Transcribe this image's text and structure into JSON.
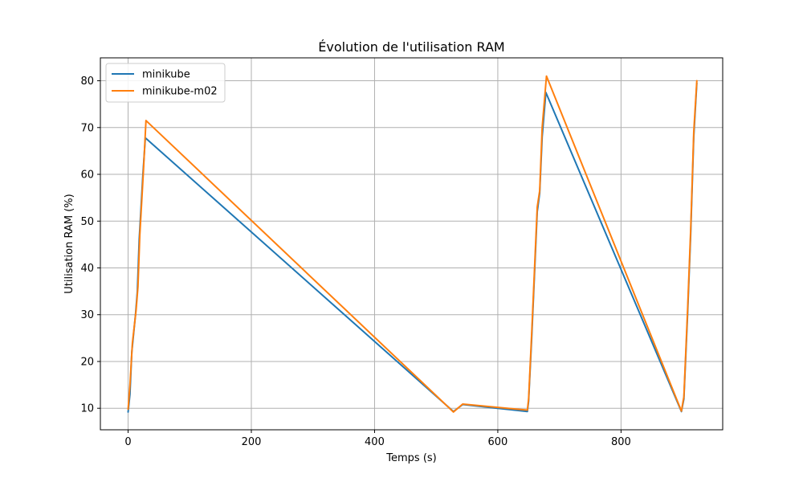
{
  "chart_data": {
    "type": "line",
    "title": "Évolution de l'utilisation RAM",
    "xlabel": "Temps (s)",
    "ylabel": "Utilisation RAM (%)",
    "xlim": [
      -45,
      965
    ],
    "ylim": [
      5.4,
      84.9
    ],
    "xticks": [
      0,
      200,
      400,
      600,
      800
    ],
    "yticks": [
      10,
      20,
      30,
      40,
      50,
      60,
      70,
      80
    ],
    "grid": true,
    "legend_position": "top-left",
    "series": [
      {
        "name": "minikube",
        "color": "#1f77b4",
        "points": [
          [
            0,
            9.2
          ],
          [
            3,
            13
          ],
          [
            6,
            22
          ],
          [
            12,
            30
          ],
          [
            15,
            35
          ],
          [
            18,
            46
          ],
          [
            24,
            60
          ],
          [
            28,
            67.8
          ],
          [
            528,
            9.3
          ],
          [
            543,
            10.8
          ],
          [
            648,
            9.3
          ],
          [
            650,
            11.5
          ],
          [
            655,
            25
          ],
          [
            660,
            40
          ],
          [
            664,
            52
          ],
          [
            668,
            56
          ],
          [
            672,
            68
          ],
          [
            678,
            77.5
          ],
          [
            898,
            9.3
          ],
          [
            902,
            12
          ],
          [
            908,
            30
          ],
          [
            913,
            47
          ],
          [
            918,
            68
          ],
          [
            923,
            79.5
          ]
        ]
      },
      {
        "name": "minikube-m02",
        "color": "#ff7f0e",
        "points": [
          [
            0,
            9.8
          ],
          [
            3,
            15
          ],
          [
            7,
            24
          ],
          [
            13,
            31
          ],
          [
            16,
            36
          ],
          [
            19,
            47
          ],
          [
            25,
            61
          ],
          [
            29,
            71.5
          ],
          [
            528,
            9.2
          ],
          [
            543,
            10.9
          ],
          [
            648,
            9.6
          ],
          [
            650,
            12
          ],
          [
            655,
            26
          ],
          [
            660,
            41
          ],
          [
            664,
            53
          ],
          [
            668,
            56.5
          ],
          [
            672,
            70
          ],
          [
            679,
            81
          ],
          [
            898,
            9.4
          ],
          [
            902,
            12.5
          ],
          [
            908,
            31
          ],
          [
            913,
            48
          ],
          [
            918,
            69
          ],
          [
            923,
            80
          ]
        ]
      }
    ]
  }
}
